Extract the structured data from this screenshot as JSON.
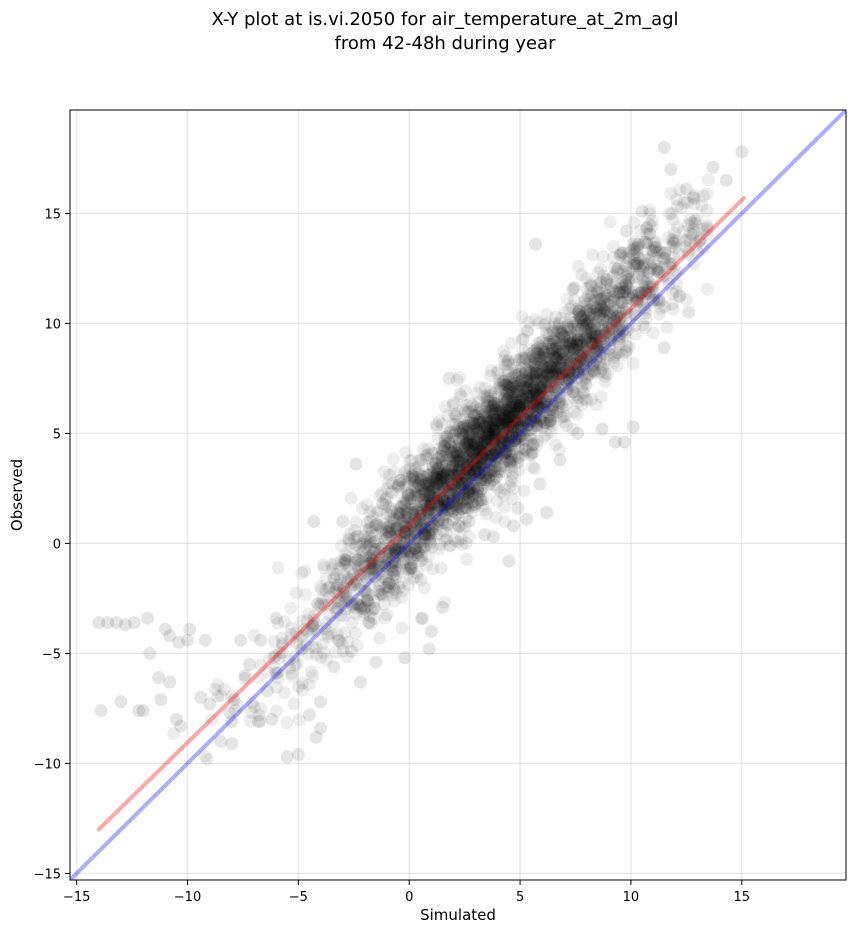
{
  "chart_data": {
    "type": "scatter",
    "title_line1": "X-Y plot at is.vi.2050 for air_temperature_at_2m_agl",
    "title_line2": "from 42-48h during year",
    "xlabel": "Simulated",
    "ylabel": "Observed",
    "xlim": [
      -15.3,
      19.7
    ],
    "ylim": [
      -15.3,
      19.7
    ],
    "xticks": [
      -15,
      -10,
      -5,
      0,
      5,
      10,
      15
    ],
    "yticks": [
      -15,
      -10,
      -5,
      0,
      5,
      10,
      15
    ],
    "xtick_labels": [
      "−15",
      "−10",
      "−5",
      "0",
      "5",
      "10",
      "15"
    ],
    "ytick_labels": [
      "−15",
      "−10",
      "−5",
      "0",
      "5",
      "10",
      "15"
    ],
    "grid": true,
    "series": [
      {
        "kind": "scatter",
        "color": "#000000",
        "opacity": 0.07,
        "cloud": {
          "x_range": [
            -12.0,
            13.5
          ],
          "slope": 1.04,
          "intercept": 0.9,
          "spread": 1.3,
          "x_center": 4.0,
          "x_sd": 4.2,
          "count": 3200
        },
        "extra_points": [
          [
            -14,
            -3.6
          ],
          [
            -13.6,
            -3.6
          ],
          [
            -13.2,
            -3.6
          ],
          [
            -12.8,
            -3.7
          ],
          [
            -12.4,
            -3.6
          ],
          [
            -11.8,
            -3.4
          ],
          [
            -11.0,
            -3.9
          ],
          [
            -10.8,
            -4.2
          ],
          [
            -10.0,
            -4.4
          ],
          [
            -9.9,
            -3.9
          ],
          [
            -9.2,
            -4.4
          ],
          [
            -10.4,
            -4.5
          ],
          [
            -11.7,
            -5.0
          ],
          [
            -11.3,
            -6.1
          ],
          [
            -10.8,
            -6.3
          ],
          [
            -11.2,
            -7.1
          ],
          [
            -10.5,
            -8.0
          ],
          [
            -10.3,
            -8.3
          ],
          [
            -13.9,
            -7.6
          ],
          [
            -13.0,
            -7.2
          ],
          [
            -12.2,
            -7.6
          ],
          [
            -12.0,
            -7.6
          ],
          [
            -8.0,
            -8.1
          ],
          [
            -8.5,
            -9.0
          ],
          [
            -8.0,
            -9.1
          ],
          [
            -5.5,
            -9.7
          ],
          [
            -5.0,
            -9.6
          ],
          [
            -4.2,
            -8.8
          ],
          [
            -4.0,
            -8.4
          ],
          [
            -4.5,
            -7.8
          ],
          [
            -4.0,
            -7.2
          ],
          [
            -3.4,
            -5.6
          ],
          [
            -2.2,
            -6.3
          ],
          [
            -1.5,
            -5.4
          ],
          [
            -0.2,
            -5.2
          ],
          [
            0.9,
            -4.8
          ],
          [
            1.0,
            -4.0
          ],
          [
            -2.4,
            3.6
          ],
          [
            -1.2,
            1.8
          ],
          [
            0.5,
            3.8
          ],
          [
            1.8,
            7.5
          ],
          [
            5.7,
            13.6
          ],
          [
            11.5,
            18.0
          ],
          [
            11.8,
            17.0
          ],
          [
            13.7,
            17.1
          ],
          [
            14.3,
            16.5
          ],
          [
            15.0,
            17.8
          ],
          [
            12.5,
            16.1
          ],
          [
            10.5,
            15.1
          ],
          [
            12.6,
            10.5
          ],
          [
            11.5,
            8.9
          ],
          [
            9.7,
            4.6
          ],
          [
            10.1,
            5.3
          ],
          [
            9.3,
            4.6
          ],
          [
            8.7,
            5.2
          ],
          [
            7.6,
            5.0
          ],
          [
            4.7,
            0.8
          ],
          [
            4.5,
            -0.8
          ],
          [
            5.9,
            2.7
          ],
          [
            6.8,
            3.8
          ],
          [
            4.9,
            1.6
          ],
          [
            3.8,
            0.3
          ],
          [
            3.4,
            0.4
          ],
          [
            2.7,
            1.0
          ],
          [
            2.0,
            2.1
          ],
          [
            5.3,
            1.1
          ],
          [
            6.2,
            1.4
          ],
          [
            -0.9,
            -1.8
          ],
          [
            -1.7,
            -1.2
          ],
          [
            -3.0,
            1.0
          ],
          [
            -4.3,
            1.0
          ],
          [
            -6.0,
            -3.4
          ],
          [
            -6.7,
            -4.4
          ],
          [
            -7.6,
            -4.4
          ],
          [
            -7.2,
            -5.5
          ],
          [
            -6.0,
            -5.9
          ],
          [
            -7.4,
            -6.0
          ],
          [
            -7.9,
            -7.1
          ],
          [
            -8.1,
            -7.7
          ],
          [
            -9.4,
            -7.0
          ],
          [
            -9.0,
            -7.3
          ],
          [
            -6.4,
            -6.7
          ],
          [
            -6.8,
            -8.1
          ],
          [
            -6.2,
            -8.0
          ],
          [
            -2.6,
            -4.9
          ],
          [
            -3.2,
            -4.4
          ],
          [
            1.5,
            -2.9
          ],
          [
            0.6,
            -3.4
          ],
          [
            8.9,
            12.0
          ],
          [
            9.8,
            14.2
          ]
        ]
      },
      {
        "kind": "line",
        "color": "#ff0000",
        "opacity": 0.35,
        "x": [
          -14.0,
          15.1
        ],
        "y": [
          -13.0,
          15.7
        ]
      },
      {
        "kind": "line",
        "color": "#0000ff",
        "opacity": 0.32,
        "x": [
          -15.3,
          19.7
        ],
        "y": [
          -15.3,
          19.7
        ]
      }
    ]
  }
}
